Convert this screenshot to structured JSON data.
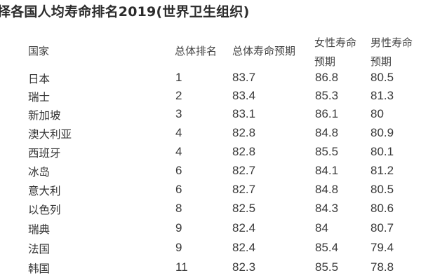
{
  "title": "择各国人均寿命排名2019(世界卫生组织)",
  "headers": {
    "country": "国家",
    "overall_rank": "总体排名",
    "overall_life": "总体寿命预期",
    "female_line1": "女性寿命",
    "female_line2": "预期",
    "male_line1": "男性寿命",
    "male_line2": "预期"
  },
  "rows": [
    {
      "country": "日本",
      "rank": "1",
      "overall": "83.7",
      "female": "86.8",
      "male": "80.5"
    },
    {
      "country": "瑞士",
      "rank": "2",
      "overall": "83.4",
      "female": "85.3",
      "male": "81.3"
    },
    {
      "country": "新加坡",
      "rank": "3",
      "overall": "83.1",
      "female": "86.1",
      "male": "80"
    },
    {
      "country": "澳大利亚",
      "rank": "4",
      "overall": "82.8",
      "female": "84.8",
      "male": "80.9"
    },
    {
      "country": "西班牙",
      "rank": "4",
      "overall": "82.8",
      "female": "85.5",
      "male": "80.1"
    },
    {
      "country": "冰岛",
      "rank": "6",
      "overall": "82.7",
      "female": "84.1",
      "male": "81.2"
    },
    {
      "country": "意大利",
      "rank": "6",
      "overall": "82.7",
      "female": "84.8",
      "male": "80.5"
    },
    {
      "country": "以色列",
      "rank": "8",
      "overall": "82.5",
      "female": "84.3",
      "male": "80.6"
    },
    {
      "country": "瑞典",
      "rank": "9",
      "overall": "82.4",
      "female": "84",
      "male": "80.7"
    },
    {
      "country": "法国",
      "rank": "9",
      "overall": "82.4",
      "female": "85.4",
      "male": "79.4"
    },
    {
      "country": "韩国",
      "rank": "11",
      "overall": "82.3",
      "female": "85.5",
      "male": "78.8"
    }
  ]
}
